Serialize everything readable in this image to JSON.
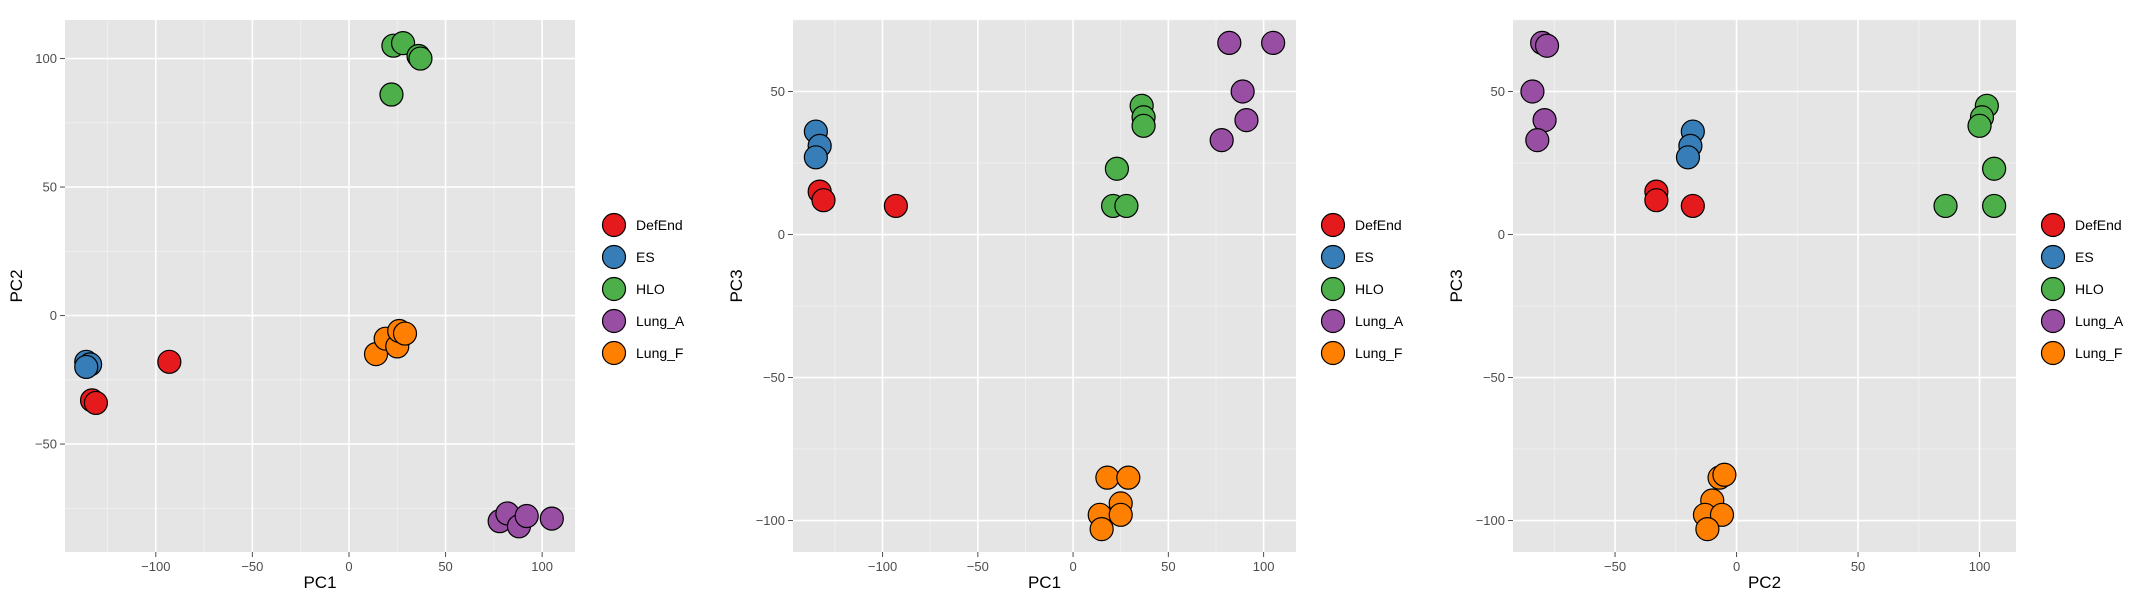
{
  "colors": {
    "panel_background": "#E5E5E5",
    "grid_major": "#FFFFFF",
    "grid_minor": "#F2F2F2",
    "tick_text": "#4D4D4D",
    "point_outline": "#000000"
  },
  "chart_data": [
    {
      "type": "scatter",
      "xlabel": "PC1",
      "ylabel": "PC2",
      "xlim": [
        -147,
        117
      ],
      "ylim": [
        -92,
        115
      ],
      "xticks": [
        -100,
        -50,
        0,
        50,
        100
      ],
      "yticks": [
        -50,
        0,
        50,
        100
      ],
      "grid": true,
      "legend_placement": "right",
      "series": [
        {
          "name": "DefEnd",
          "color": "#E41A1C",
          "points": [
            [
              -133,
              -33
            ],
            [
              -131,
              -34
            ],
            [
              -93,
              -18
            ]
          ]
        },
        {
          "name": "ES",
          "color": "#377EB8",
          "points": [
            [
              -136,
              -18
            ],
            [
              -134,
              -19
            ],
            [
              -136,
              -20
            ]
          ]
        },
        {
          "name": "HLO",
          "color": "#4DAF4A",
          "points": [
            [
              23,
              105
            ],
            [
              28,
              106
            ],
            [
              36,
              101
            ],
            [
              37,
              100
            ],
            [
              22,
              86
            ]
          ]
        },
        {
          "name": "Lung_A",
          "color": "#984EA3",
          "points": [
            [
              78,
              -80
            ],
            [
              82,
              -77
            ],
            [
              88,
              -82
            ],
            [
              92,
              -78
            ],
            [
              105,
              -79
            ]
          ]
        },
        {
          "name": "Lung_F",
          "color": "#FF7F00",
          "points": [
            [
              14,
              -15
            ],
            [
              19,
              -9
            ],
            [
              25,
              -12
            ],
            [
              26,
              -6
            ],
            [
              29,
              -7
            ]
          ]
        }
      ]
    },
    {
      "type": "scatter",
      "xlabel": "PC1",
      "ylabel": "PC3",
      "xlim": [
        -147,
        117
      ],
      "ylim": [
        -111,
        75
      ],
      "xticks": [
        -100,
        -50,
        0,
        50,
        100
      ],
      "yticks": [
        -100,
        -50,
        0,
        50
      ],
      "grid": true,
      "legend_placement": "right",
      "series": [
        {
          "name": "DefEnd",
          "color": "#E41A1C",
          "points": [
            [
              -133,
              15
            ],
            [
              -131,
              12
            ],
            [
              -93,
              10
            ]
          ]
        },
        {
          "name": "ES",
          "color": "#377EB8",
          "points": [
            [
              -135,
              36
            ],
            [
              -133,
              31
            ],
            [
              -135,
              27
            ]
          ]
        },
        {
          "name": "HLO",
          "color": "#4DAF4A",
          "points": [
            [
              23,
              23
            ],
            [
              21,
              10
            ],
            [
              28,
              10
            ],
            [
              36,
              45
            ],
            [
              37,
              41
            ],
            [
              37,
              38
            ]
          ]
        },
        {
          "name": "Lung_A",
          "color": "#984EA3",
          "points": [
            [
              82,
              67
            ],
            [
              105,
              67
            ],
            [
              89,
              50
            ],
            [
              91,
              40
            ],
            [
              78,
              33
            ]
          ]
        },
        {
          "name": "Lung_F",
          "color": "#FF7F00",
          "points": [
            [
              18,
              -85
            ],
            [
              29,
              -85
            ],
            [
              25,
              -94
            ],
            [
              14,
              -98
            ],
            [
              25,
              -98
            ],
            [
              15,
              -103
            ]
          ]
        }
      ]
    },
    {
      "type": "scatter",
      "xlabel": "PC2",
      "ylabel": "PC3",
      "xlim": [
        -92,
        115
      ],
      "ylim": [
        -111,
        75
      ],
      "xticks": [
        -50,
        0,
        50,
        100
      ],
      "yticks": [
        -100,
        -50,
        0,
        50
      ],
      "grid": true,
      "legend_placement": "right",
      "series": [
        {
          "name": "DefEnd",
          "color": "#E41A1C",
          "points": [
            [
              -33,
              15
            ],
            [
              -33,
              12
            ],
            [
              -18,
              10
            ]
          ]
        },
        {
          "name": "ES",
          "color": "#377EB8",
          "points": [
            [
              -18,
              36
            ],
            [
              -19,
              31
            ],
            [
              -20,
              27
            ]
          ]
        },
        {
          "name": "HLO",
          "color": "#4DAF4A",
          "points": [
            [
              103,
              45
            ],
            [
              101,
              41
            ],
            [
              100,
              38
            ],
            [
              106,
              23
            ],
            [
              86,
              10
            ],
            [
              106,
              10
            ]
          ]
        },
        {
          "name": "Lung_A",
          "color": "#984EA3",
          "points": [
            [
              -80,
              67
            ],
            [
              -78,
              66
            ],
            [
              -84,
              50
            ],
            [
              -79,
              40
            ],
            [
              -82,
              33
            ]
          ]
        },
        {
          "name": "Lung_F",
          "color": "#FF7F00",
          "points": [
            [
              -7,
              -85
            ],
            [
              -5,
              -84
            ],
            [
              -10,
              -93
            ],
            [
              -13,
              -98
            ],
            [
              -6,
              -98
            ],
            [
              -12,
              -103
            ]
          ]
        }
      ]
    }
  ]
}
